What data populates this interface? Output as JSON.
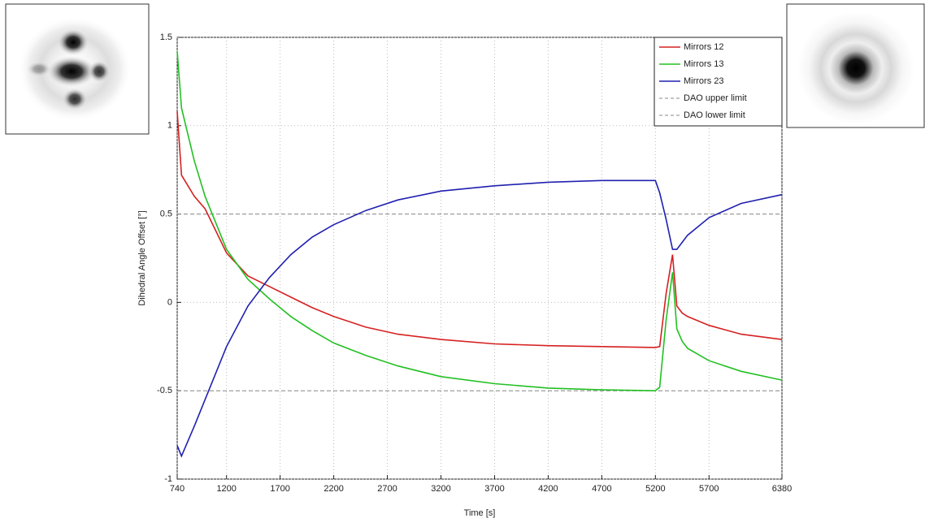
{
  "chart_data": {
    "type": "line",
    "xlabel": "Time [s]",
    "ylabel": "Dihedral Angle Offset [°]",
    "x": [
      740,
      780,
      900,
      1000,
      1200,
      1400,
      1600,
      1800,
      2000,
      2200,
      2500,
      2800,
      3200,
      3700,
      4200,
      4700,
      5200,
      5240,
      5300,
      5360,
      5400,
      5450,
      5500,
      5700,
      6000,
      6380
    ],
    "series": [
      {
        "name": "Mirrors 12",
        "color": "#d62020",
        "values": [
          1.08,
          0.72,
          0.6,
          0.53,
          0.28,
          0.15,
          0.09,
          0.03,
          -0.03,
          -0.08,
          -0.14,
          -0.18,
          -0.21,
          -0.235,
          -0.245,
          -0.25,
          -0.255,
          -0.25,
          0.05,
          0.27,
          -0.02,
          -0.06,
          -0.08,
          -0.13,
          -0.18,
          -0.21
        ]
      },
      {
        "name": "Mirrors 13",
        "color": "#22c022",
        "values": [
          1.42,
          1.1,
          0.8,
          0.6,
          0.3,
          0.13,
          0.02,
          -0.08,
          -0.16,
          -0.23,
          -0.3,
          -0.36,
          -0.42,
          -0.46,
          -0.485,
          -0.495,
          -0.5,
          -0.48,
          -0.1,
          0.17,
          -0.15,
          -0.22,
          -0.26,
          -0.33,
          -0.39,
          -0.44
        ]
      },
      {
        "name": "Mirrors 23",
        "color": "#2020b0",
        "values": [
          -0.81,
          -0.87,
          -0.7,
          -0.55,
          -0.25,
          -0.02,
          0.14,
          0.27,
          0.37,
          0.44,
          0.52,
          0.58,
          0.63,
          0.66,
          0.68,
          0.69,
          0.69,
          0.62,
          0.47,
          0.3,
          0.3,
          0.34,
          0.38,
          0.48,
          0.56,
          0.61
        ]
      }
    ],
    "limits": [
      {
        "name": "DAO upper limit",
        "value": 0.5,
        "color": "#888888"
      },
      {
        "name": "DAO lower limit",
        "value": -0.5,
        "color": "#888888"
      }
    ],
    "xlim": [
      740,
      6380
    ],
    "xticks": [
      740,
      1200,
      1700,
      2200,
      2700,
      3200,
      3700,
      4200,
      4700,
      5200,
      5700,
      6380
    ],
    "ylim": [
      -1,
      1.5
    ],
    "yticks": [
      -1,
      -0.5,
      0,
      0.5,
      1,
      1.5
    ],
    "grid": true,
    "legend": "top-right"
  }
}
